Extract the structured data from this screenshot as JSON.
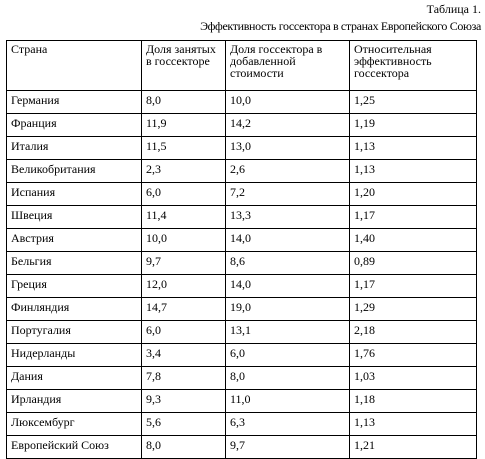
{
  "caption": {
    "number": "Таблица 1.",
    "title": "Эффективность госсектора в странах Европейского Союза"
  },
  "table": {
    "headers": [
      "Страна",
      "Доля занятых в госсекторе",
      "Доля госсектора в добавленной стоимости",
      "Относительная эффективность госсектора"
    ],
    "rows": [
      [
        "Германия",
        "8,0",
        "10,0",
        "1,25"
      ],
      [
        "Франция",
        "11,9",
        "14,2",
        "1,19"
      ],
      [
        "Италия",
        "11,5",
        "13,0",
        "1,13"
      ],
      [
        "Великобритания",
        "2,3",
        "2,6",
        "1,13"
      ],
      [
        "Испания",
        "6,0",
        "7,2",
        "1,20"
      ],
      [
        "Швеция",
        "11,4",
        "13,3",
        "1,17"
      ],
      [
        "Австрия",
        "10,0",
        "14,0",
        "1,40"
      ],
      [
        "Бельгия",
        "9,7",
        "8,6",
        "0,89"
      ],
      [
        "Греция",
        "12,0",
        "14,0",
        "1,17"
      ],
      [
        "Финляндия",
        "14,7",
        "19,0",
        "1,29"
      ],
      [
        "Португалия",
        "6,0",
        "13,1",
        "2,18"
      ],
      [
        "Нидерланды",
        "3,4",
        "6,0",
        "1,76"
      ],
      [
        "Дания",
        "7,8",
        "8,0",
        "1,03"
      ],
      [
        "Ирландия",
        "9,3",
        "11,0",
        "1,18"
      ],
      [
        "Люксембург",
        "5,6",
        "6,3",
        "1,13"
      ],
      [
        "Европейский Союз",
        "8,0",
        "9,7",
        "1,21"
      ]
    ]
  }
}
